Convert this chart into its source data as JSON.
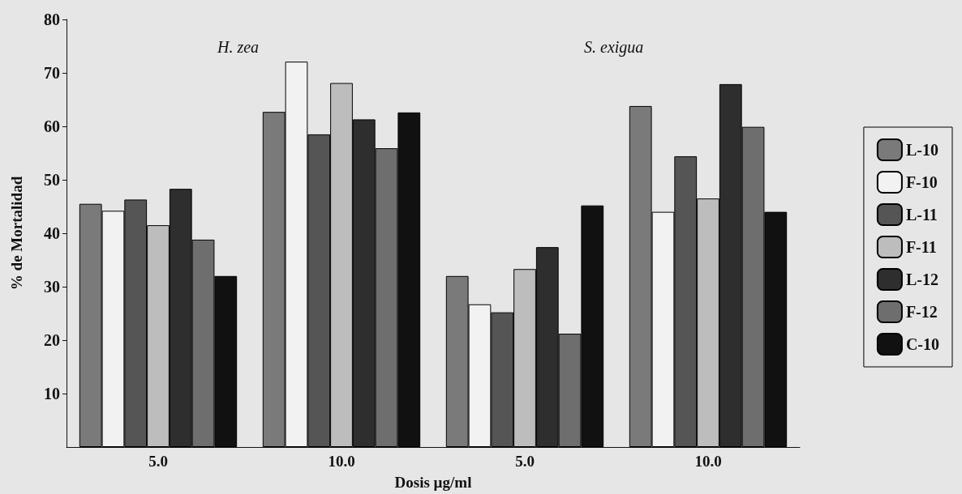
{
  "chart_data": {
    "type": "bar",
    "xlabel": "Dosis µg/ml",
    "ylabel": "% de Mortalidad",
    "annotations": [
      "H. zea",
      "S. exigua"
    ],
    "categories": [
      "5.0",
      "10.0",
      "5.0",
      "10.0"
    ],
    "series": [
      {
        "name": "L-10",
        "color": "#7a7a7a",
        "values": [
          45.5,
          62.7,
          32.0,
          63.8
        ]
      },
      {
        "name": "F-10",
        "color": "#f2f2f2",
        "values": [
          44.2,
          72.1,
          26.7,
          44.0
        ]
      },
      {
        "name": "L-11",
        "color": "#555555",
        "values": [
          46.3,
          58.5,
          25.2,
          54.4
        ]
      },
      {
        "name": "F-11",
        "color": "#bdbdbd",
        "values": [
          41.5,
          68.1,
          33.3,
          46.5
        ]
      },
      {
        "name": "L-12",
        "color": "#2e2e2e",
        "values": [
          48.3,
          61.3,
          37.4,
          67.9
        ]
      },
      {
        "name": "F-12",
        "color": "#6e6e6e",
        "values": [
          38.8,
          55.9,
          21.2,
          59.9
        ]
      },
      {
        "name": "C-10",
        "color": "#111111",
        "values": [
          32.0,
          62.6,
          45.2,
          44.0
        ]
      }
    ],
    "ylim": [
      0,
      80
    ],
    "yticks": [
      10,
      20,
      30,
      40,
      50,
      60,
      70,
      80
    ],
    "grid": false,
    "legend": "right"
  }
}
